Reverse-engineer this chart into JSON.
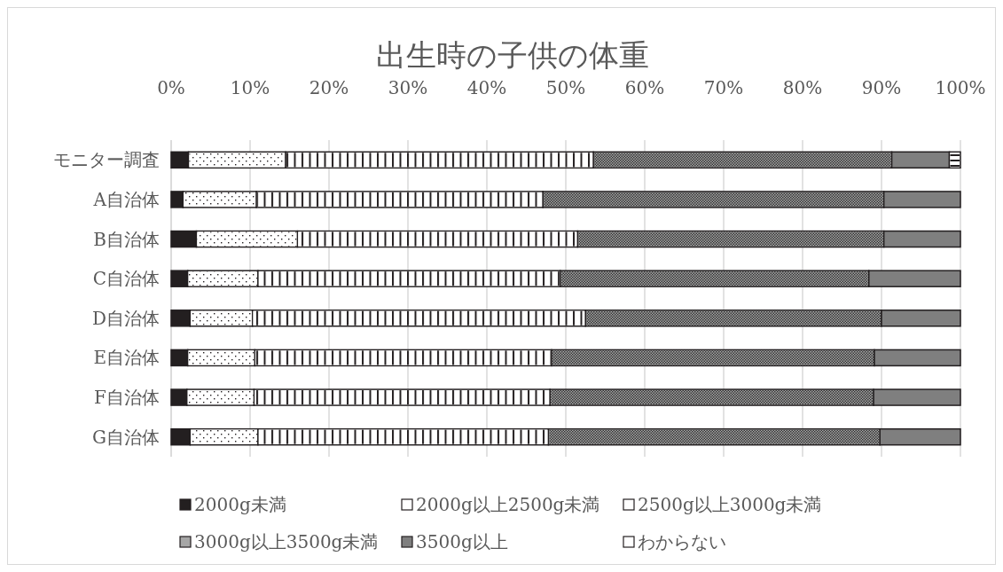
{
  "chart_data": {
    "type": "bar",
    "orientation": "horizontal",
    "stacked": true,
    "title": "出生時の子供の体重",
    "categories": [
      "モニター調査",
      "A自治体",
      "B自治体",
      "C自治体",
      "D自治体",
      "E自治体",
      "F自治体",
      "G自治体"
    ],
    "xlim": [
      0,
      100
    ],
    "xticks": [
      {
        "value": 0,
        "label": "0%"
      },
      {
        "value": 10,
        "label": "10%"
      },
      {
        "value": 20,
        "label": "20%"
      },
      {
        "value": 30,
        "label": "30%"
      },
      {
        "value": 40,
        "label": "40%"
      },
      {
        "value": 50,
        "label": "50%"
      },
      {
        "value": 60,
        "label": "60%"
      },
      {
        "value": 70,
        "label": "70%"
      },
      {
        "value": 80,
        "label": "80%"
      },
      {
        "value": 90,
        "label": "90%"
      },
      {
        "value": 100,
        "label": "100%"
      }
    ],
    "grid": "x",
    "legend": "bottom",
    "series": [
      {
        "name": "2000g未満",
        "color": "#231f20",
        "values": [
          2.2,
          1.5,
          3.2,
          2.1,
          2.4,
          2.1,
          2.0,
          2.4
        ]
      },
      {
        "name": "2000g以上2500g未満",
        "color": "#ffffff",
        "values": [
          12.3,
          9.3,
          12.8,
          8.9,
          7.9,
          8.5,
          8.5,
          8.6
        ]
      },
      {
        "name": "2500g以上3000g未満",
        "color": "#ffffff",
        "values": [
          39.0,
          36.3,
          35.5,
          38.3,
          42.2,
          37.6,
          37.5,
          36.8
        ]
      },
      {
        "name": "3000g以上3500g未満",
        "color": "#a6a6a6",
        "values": [
          37.8,
          43.2,
          38.8,
          39.1,
          37.5,
          40.9,
          41.0,
          42.0
        ]
      },
      {
        "name": "3500g以上",
        "color": "#7f7f7f",
        "values": [
          7.3,
          9.7,
          9.7,
          11.6,
          10.0,
          10.9,
          11.0,
          10.2
        ]
      },
      {
        "name": "わからない",
        "color": "#ffffff",
        "values": [
          1.4,
          null,
          null,
          null,
          null,
          null,
          null,
          null
        ]
      }
    ]
  }
}
